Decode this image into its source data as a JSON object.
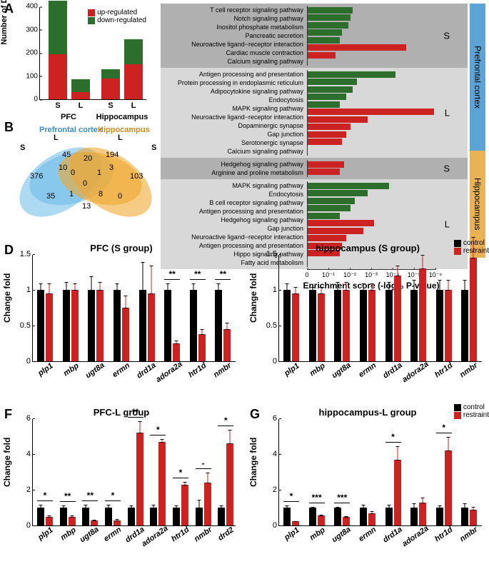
{
  "colors": {
    "up": "#cc2222",
    "down": "#2d6e2d",
    "control": "#000000",
    "restraint": "#cc2222",
    "pfc_venn": "#69b9e8",
    "hippo_venn": "#f0a830",
    "pfc_bar": "#5ca3d6",
    "hippo_bar": "#e8b255",
    "bg_dark": "#b0b0b0",
    "bg_light": "#d8d8d8"
  },
  "panelA": {
    "y_label": "Number of DEGs",
    "y_max": 400,
    "y_ticks": [
      0,
      100,
      200,
      300,
      400
    ],
    "legend": {
      "up": "up-regulated",
      "down": "down-regulated"
    },
    "groups": [
      {
        "label": "S",
        "group": "PFC",
        "up": 195,
        "down": 230
      },
      {
        "label": "L",
        "group": "PFC",
        "up": 30,
        "down": 55
      },
      {
        "label": "S",
        "group": "Hippocampus",
        "up": 90,
        "down": 40
      },
      {
        "label": "L",
        "group": "Hippocampus",
        "up": 150,
        "down": 110
      }
    ],
    "group_labels": [
      "PFC",
      "Hippocampus"
    ]
  },
  "panelB": {
    "labels": {
      "pfc": "Prefrontal cortex",
      "hippo": "Hippocampus",
      "s": "S",
      "l": "L"
    },
    "numbers": {
      "pfc_s_only": 376,
      "pfc_l_only": 45,
      "hippo_l_only": 194,
      "hippo_s_only": 103,
      "a": 10,
      "b": 20,
      "c": 3,
      "d": 35,
      "e": 1,
      "f": 8,
      "g": 13,
      "h": 0,
      "i": 0,
      "j": 1,
      "k": 0
    }
  },
  "panelC": {
    "x_label": "Enrichment score (-log₁₀ P-value)",
    "x_ticks": [
      "0",
      "10⁻¹",
      "10⁻²",
      "10⁻³",
      "10⁻⁴",
      "10⁻⁵",
      "10⁻⁶"
    ],
    "sections": [
      {
        "tissue": "Prefrontal cortex",
        "group": "S",
        "bg": "dark",
        "pathways": [
          {
            "name": "T cell receptor signaling pathway",
            "dir": "down",
            "val": 2.1
          },
          {
            "name": "Notch signaling pathway",
            "dir": "down",
            "val": 2.0
          },
          {
            "name": "Inositol phosphate metabolism",
            "dir": "down",
            "val": 1.9
          },
          {
            "name": "Pancreatic secretion",
            "dir": "down",
            "val": 1.6
          },
          {
            "name": "Neuroactive ligand−receptor interaction",
            "dir": "down",
            "val": 1.5
          },
          {
            "name": "Cardiac muscle contraction",
            "dir": "up",
            "val": 4.6
          },
          {
            "name": "Calcium signaling pathway",
            "dir": "up",
            "val": 1.3
          }
        ]
      },
      {
        "tissue": "Prefrontal cortex",
        "group": "L",
        "bg": "light",
        "pathways": [
          {
            "name": "Antigen processing and presentation",
            "dir": "down",
            "val": 4.1
          },
          {
            "name": "Protein processing in endoplasmic reticulum",
            "dir": "down",
            "val": 2.3
          },
          {
            "name": "Adipocytokine signaling pathway",
            "dir": "down",
            "val": 2.1
          },
          {
            "name": "Endocytosis",
            "dir": "down",
            "val": 1.8
          },
          {
            "name": "MAPK signaling pathway",
            "dir": "down",
            "val": 1.5
          },
          {
            "name": "Neuroactive ligand−receptor interaction",
            "dir": "up",
            "val": 5.9
          },
          {
            "name": "Dopaminergic synapse",
            "dir": "up",
            "val": 2.8
          },
          {
            "name": "Gap junction",
            "dir": "up",
            "val": 2.0
          },
          {
            "name": "Serotonergic synapse",
            "dir": "up",
            "val": 1.8
          },
          {
            "name": "Calcium signaling pathway",
            "dir": "up",
            "val": 1.6
          }
        ]
      },
      {
        "tissue": "Hippocampus",
        "group": "S",
        "bg": "dark",
        "pathways": [
          {
            "name": "Hedgehog signaling pathway",
            "dir": "up",
            "val": 1.7
          },
          {
            "name": "Arginine and proline metabolism",
            "dir": "up",
            "val": 1.5
          }
        ]
      },
      {
        "tissue": "Hippocampus",
        "group": "L",
        "bg": "light",
        "pathways": [
          {
            "name": "MAPK signaling pathway",
            "dir": "down",
            "val": 3.8
          },
          {
            "name": "Endocytosis",
            "dir": "down",
            "val": 2.8
          },
          {
            "name": "B cell receptor signaling pathway",
            "dir": "down",
            "val": 2.2
          },
          {
            "name": "Antigen processing and presentation",
            "dir": "down",
            "val": 2.0
          },
          {
            "name": "Hedgehog signaling pathway",
            "dir": "down",
            "val": 1.5
          },
          {
            "name": "Gap junction",
            "dir": "up",
            "val": 3.1
          },
          {
            "name": "Neuroactive ligand−receptor interaction",
            "dir": "up",
            "val": 2.6
          },
          {
            "name": "Antigen processing and presentation",
            "dir": "up",
            "val": 1.8
          },
          {
            "name": "Hippo signaling pathway",
            "dir": "up",
            "val": 1.6
          },
          {
            "name": "Fatty acid metabolism",
            "dir": "up",
            "val": 1.5
          }
        ]
      }
    ]
  },
  "qpcr_common": {
    "y_label": "Change fold",
    "legend": {
      "control": "control",
      "restraint": "restraint"
    }
  },
  "panelD": {
    "title": "PFC (S group)",
    "y_max": 1.5,
    "y_ticks": [
      0,
      0.5,
      1,
      1.5
    ],
    "genes": [
      "plp1",
      "mbp",
      "ugt8a",
      "ermn",
      "drd1a",
      "adora2a",
      "htr1d",
      "nmbr"
    ],
    "control": [
      1,
      1,
      1,
      1,
      1,
      1,
      1,
      1
    ],
    "restraint": [
      0.95,
      1.0,
      1.0,
      0.75,
      0.95,
      0.25,
      0.38,
      0.45
    ],
    "err_c": [
      0.1,
      0.12,
      0.2,
      0.1,
      0.4,
      0.1,
      0.1,
      0.1
    ],
    "err_r": [
      0.15,
      0.1,
      0.12,
      0.18,
      0.4,
      0.05,
      0.08,
      0.1
    ],
    "sig": [
      null,
      null,
      null,
      null,
      null,
      "**",
      "**",
      "**"
    ]
  },
  "panelE": {
    "title": "hippocampus (S group)",
    "y_max": 1.5,
    "y_ticks": [
      0,
      0.5,
      1,
      1.5
    ],
    "genes": [
      "plp1",
      "mbp",
      "ugt8a",
      "ermn",
      "drd1a",
      "adora2a",
      "htr1d",
      "nmbr"
    ],
    "control": [
      1,
      1,
      1,
      1,
      1,
      1,
      1,
      1
    ],
    "restraint": [
      0.95,
      0.95,
      1.0,
      1.0,
      1.2,
      1.3,
      1.0,
      1.45
    ],
    "err_c": [
      0.1,
      0.05,
      0.12,
      0.1,
      0.12,
      0.15,
      0.15,
      0.15
    ],
    "err_r": [
      0.1,
      0.1,
      0.12,
      0.1,
      0.15,
      0.2,
      0.15,
      0.3
    ],
    "sig": [
      null,
      null,
      null,
      null,
      null,
      null,
      null,
      null
    ]
  },
  "panelF": {
    "title": "PFC-L group",
    "y_max": 6,
    "y_ticks": [
      0,
      2,
      4,
      6
    ],
    "genes": [
      "plp1",
      "mbp",
      "ugt8a",
      "ermn",
      "drd1a",
      "adora2a",
      "htr1d",
      "nmbr",
      "drd2"
    ],
    "control": [
      1,
      1,
      1,
      1,
      1,
      1,
      1,
      1,
      1
    ],
    "restraint": [
      0.5,
      0.5,
      0.3,
      0.3,
      5.2,
      4.7,
      2.3,
      2.4,
      4.6
    ],
    "err_c": [
      0.2,
      0.15,
      0.2,
      0.2,
      0.15,
      0.2,
      0.15,
      0.5,
      0.15
    ],
    "err_r": [
      0.1,
      0.1,
      0.05,
      0.1,
      0.7,
      0.2,
      0.2,
      0.6,
      0.8
    ],
    "sig": [
      "*",
      "**",
      "**",
      "*",
      "**",
      "*",
      "*",
      "-",
      "*"
    ]
  },
  "panelG": {
    "title": "hippocampus-L group",
    "y_max": 6,
    "y_ticks": [
      0,
      2,
      4,
      6
    ],
    "genes": [
      "plp1",
      "mbp",
      "ugt8a",
      "ermn",
      "drd1a",
      "adora2a",
      "htr1d",
      "nmbr"
    ],
    "control": [
      1,
      1,
      1,
      1,
      1,
      1,
      1,
      1
    ],
    "restraint": [
      0.25,
      0.55,
      0.5,
      0.7,
      3.7,
      1.3,
      4.2,
      0.9
    ],
    "err_c": [
      0.15,
      0.1,
      0.1,
      0.2,
      0.2,
      0.3,
      0.15,
      0.3
    ],
    "err_r": [
      0.05,
      0.1,
      0.05,
      0.15,
      0.8,
      0.3,
      0.8,
      0.2
    ],
    "sig": [
      "*",
      "***",
      "***",
      null,
      "*",
      null,
      "*",
      null
    ]
  }
}
